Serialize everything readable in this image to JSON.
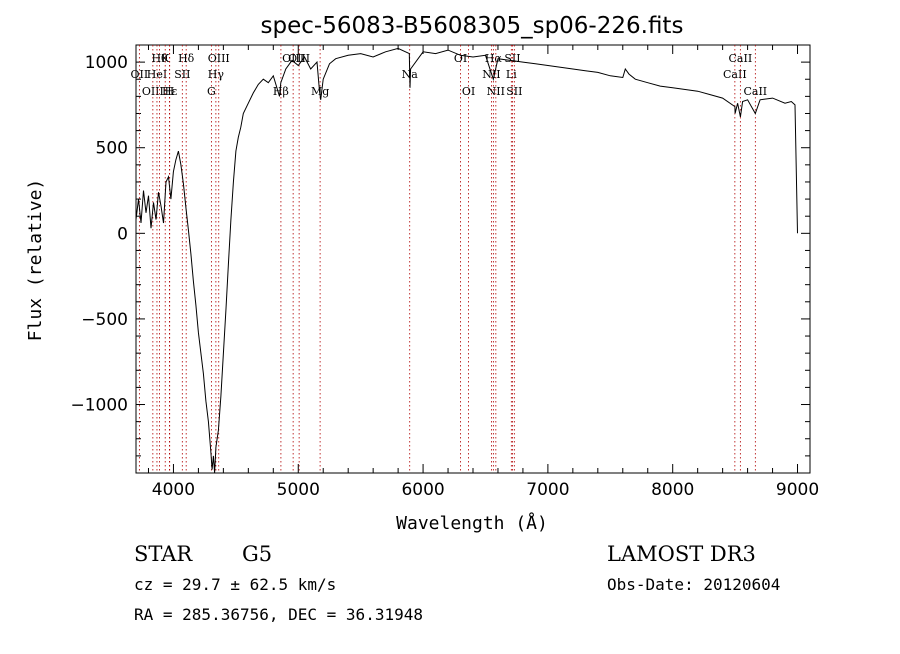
{
  "chart_data": {
    "type": "line",
    "title": "spec-56083-B5608305_sp06-226.fits",
    "xlabel": "Wavelength (Å)",
    "ylabel": "Flux (relative)",
    "xlim": [
      3700,
      9100
    ],
    "ylim": [
      -1400,
      1100
    ],
    "x_ticks": [
      4000,
      5000,
      6000,
      7000,
      8000,
      9000
    ],
    "y_ticks": [
      -1000,
      -500,
      0,
      500,
      1000
    ],
    "grid": false,
    "series": [
      {
        "color": "#000000",
        "points": [
          [
            3700,
            80
          ],
          [
            3720,
            200
          ],
          [
            3740,
            60
          ],
          [
            3760,
            250
          ],
          [
            3780,
            120
          ],
          [
            3800,
            220
          ],
          [
            3820,
            30
          ],
          [
            3840,
            180
          ],
          [
            3860,
            80
          ],
          [
            3880,
            240
          ],
          [
            3900,
            160
          ],
          [
            3920,
            60
          ],
          [
            3940,
            300
          ],
          [
            3960,
            330
          ],
          [
            3980,
            200
          ],
          [
            4000,
            360
          ],
          [
            4020,
            430
          ],
          [
            4040,
            480
          ],
          [
            4060,
            400
          ],
          [
            4080,
            290
          ],
          [
            4100,
            150
          ],
          [
            4120,
            20
          ],
          [
            4140,
            -120
          ],
          [
            4160,
            -280
          ],
          [
            4180,
            -420
          ],
          [
            4200,
            -580
          ],
          [
            4220,
            -700
          ],
          [
            4240,
            -820
          ],
          [
            4260,
            -980
          ],
          [
            4280,
            -1100
          ],
          [
            4300,
            -1280
          ],
          [
            4310,
            -1380
          ],
          [
            4320,
            -1300
          ],
          [
            4330,
            -1400
          ],
          [
            4340,
            -1250
          ],
          [
            4360,
            -1150
          ],
          [
            4380,
            -950
          ],
          [
            4400,
            -700
          ],
          [
            4420,
            -450
          ],
          [
            4440,
            -180
          ],
          [
            4460,
            80
          ],
          [
            4480,
            300
          ],
          [
            4500,
            480
          ],
          [
            4520,
            560
          ],
          [
            4540,
            620
          ],
          [
            4560,
            700
          ],
          [
            4600,
            760
          ],
          [
            4640,
            820
          ],
          [
            4680,
            870
          ],
          [
            4720,
            900
          ],
          [
            4760,
            880
          ],
          [
            4800,
            920
          ],
          [
            4850,
            800
          ],
          [
            4860,
            880
          ],
          [
            4900,
            960
          ],
          [
            4950,
            1010
          ],
          [
            5000,
            980
          ],
          [
            5050,
            1030
          ],
          [
            5100,
            960
          ],
          [
            5150,
            1000
          ],
          [
            5170,
            830
          ],
          [
            5180,
            780
          ],
          [
            5200,
            900
          ],
          [
            5250,
            990
          ],
          [
            5300,
            1020
          ],
          [
            5400,
            1040
          ],
          [
            5500,
            1050
          ],
          [
            5600,
            1030
          ],
          [
            5700,
            1060
          ],
          [
            5800,
            1080
          ],
          [
            5890,
            1050
          ],
          [
            5895,
            850
          ],
          [
            5900,
            960
          ],
          [
            6000,
            1060
          ],
          [
            6100,
            1050
          ],
          [
            6200,
            1070
          ],
          [
            6300,
            1040
          ],
          [
            6400,
            1030
          ],
          [
            6500,
            1040
          ],
          [
            6563,
            900
          ],
          [
            6600,
            1020
          ],
          [
            6700,
            1010
          ],
          [
            6800,
            1000
          ],
          [
            6900,
            990
          ],
          [
            7000,
            980
          ],
          [
            7100,
            970
          ],
          [
            7200,
            960
          ],
          [
            7300,
            950
          ],
          [
            7400,
            940
          ],
          [
            7500,
            920
          ],
          [
            7600,
            910
          ],
          [
            7620,
            960
          ],
          [
            7650,
            930
          ],
          [
            7700,
            900
          ],
          [
            7800,
            880
          ],
          [
            7900,
            860
          ],
          [
            8000,
            850
          ],
          [
            8100,
            840
          ],
          [
            8200,
            830
          ],
          [
            8300,
            810
          ],
          [
            8400,
            790
          ],
          [
            8498,
            740
          ],
          [
            8500,
            700
          ],
          [
            8520,
            760
          ],
          [
            8542,
            680
          ],
          [
            8560,
            770
          ],
          [
            8600,
            780
          ],
          [
            8662,
            700
          ],
          [
            8700,
            780
          ],
          [
            8800,
            790
          ],
          [
            8900,
            760
          ],
          [
            8950,
            770
          ],
          [
            8980,
            750
          ],
          [
            9000,
            0
          ]
        ]
      }
    ],
    "lines": [
      {
        "x": 3727,
        "labels": [
          "OII"
        ],
        "rows": [
          1
        ]
      },
      {
        "x": 3835,
        "labels": [
          "OIII"
        ],
        "rows": [
          2
        ]
      },
      {
        "x": 3868,
        "labels": [
          "HeI"
        ],
        "rows": [
          1
        ]
      },
      {
        "x": 3889,
        "labels": [
          "Hθ"
        ],
        "rows": [
          0
        ]
      },
      {
        "x": 3934,
        "labels": [
          "K"
        ],
        "rows": [
          0
        ]
      },
      {
        "x": 3968,
        "labels": [
          "H"
        ],
        "rows": [
          2
        ]
      },
      {
        "x": 3970,
        "labels": [
          "Hε"
        ],
        "rows": [
          2
        ]
      },
      {
        "x": 4071,
        "labels": [
          "SII"
        ],
        "rows": [
          1
        ]
      },
      {
        "x": 4102,
        "labels": [
          "Hδ"
        ],
        "rows": [
          0
        ]
      },
      {
        "x": 4304,
        "labels": [
          "G"
        ],
        "rows": [
          2
        ]
      },
      {
        "x": 4340,
        "labels": [
          "Hγ"
        ],
        "rows": [
          1
        ]
      },
      {
        "x": 4363,
        "labels": [
          "OIII"
        ],
        "rows": [
          0
        ]
      },
      {
        "x": 4861,
        "labels": [
          "Hβ"
        ],
        "rows": [
          2
        ]
      },
      {
        "x": 4959,
        "labels": [
          "OIII"
        ],
        "rows": [
          0
        ]
      },
      {
        "x": 5007,
        "labels": [
          "OIII"
        ],
        "rows": [
          0
        ]
      },
      {
        "x": 5175,
        "labels": [
          "Mg"
        ],
        "rows": [
          2
        ]
      },
      {
        "x": 5893,
        "labels": [
          "Na"
        ],
        "rows": [
          1
        ]
      },
      {
        "x": 6300,
        "labels": [
          "OI"
        ],
        "rows": [
          0
        ]
      },
      {
        "x": 6364,
        "labels": [
          "OI"
        ],
        "rows": [
          2
        ]
      },
      {
        "x": 6548,
        "labels": [
          "NII"
        ],
        "rows": [
          1
        ]
      },
      {
        "x": 6563,
        "labels": [
          "Hα"
        ],
        "rows": [
          0
        ]
      },
      {
        "x": 6583,
        "labels": [
          "NII"
        ],
        "rows": [
          2
        ]
      },
      {
        "x": 6707,
        "labels": [
          "Li"
        ],
        "rows": [
          1
        ]
      },
      {
        "x": 6716,
        "labels": [
          "SII"
        ],
        "rows": [
          0
        ]
      },
      {
        "x": 6731,
        "labels": [
          "SII"
        ],
        "rows": [
          2
        ]
      },
      {
        "x": 8498,
        "labels": [
          "CaII"
        ],
        "rows": [
          1
        ]
      },
      {
        "x": 8542,
        "labels": [
          "CaII"
        ],
        "rows": [
          0
        ]
      },
      {
        "x": 8662,
        "labels": [
          "CaII"
        ],
        "rows": [
          2
        ]
      }
    ]
  },
  "info": {
    "object_class": "STAR",
    "subclass": "G5",
    "survey": "LAMOST DR3",
    "redshift": "cz = 29.7 ± 62.5 km/s",
    "obs_date": "Obs-Date: 20120604",
    "coords": "RA = 285.36756, DEC =  36.31948"
  }
}
